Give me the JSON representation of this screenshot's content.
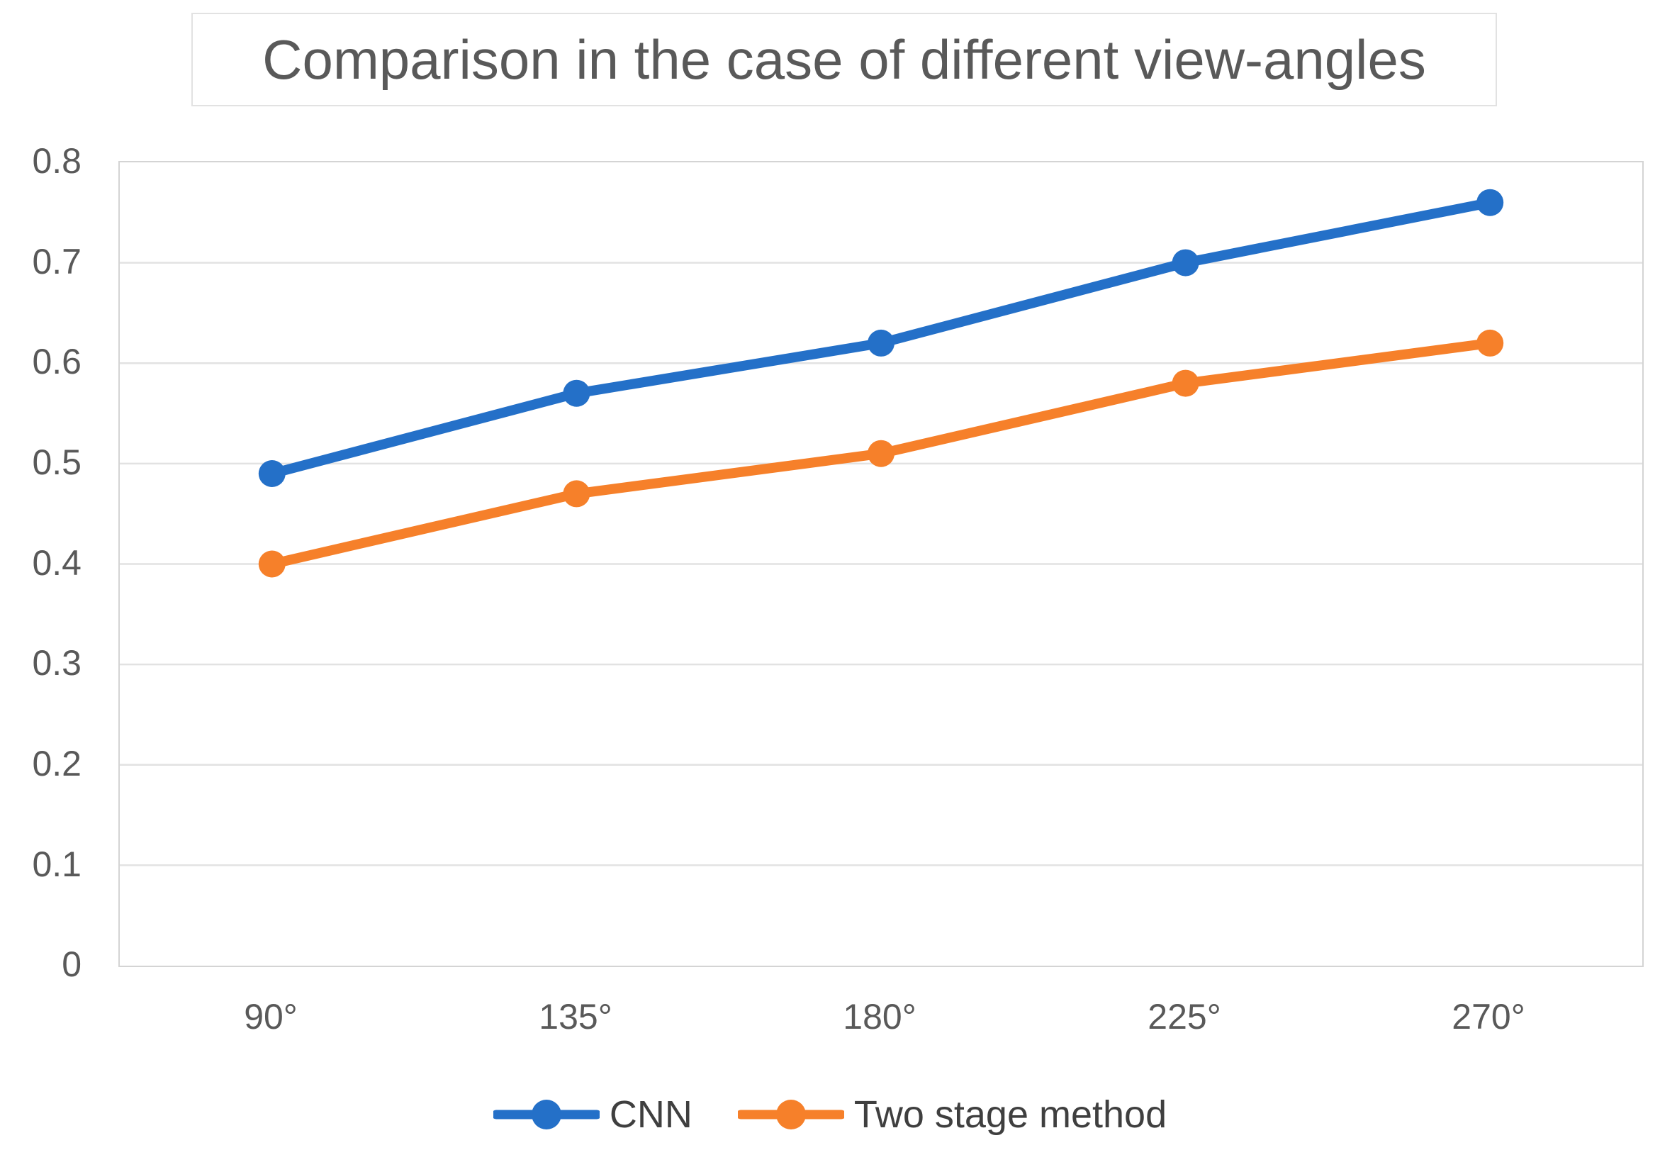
{
  "title": "Comparison in the case of different view-angles",
  "chart_data": {
    "type": "line",
    "categories": [
      "90°",
      "135°",
      "180°",
      "225°",
      "270°"
    ],
    "series": [
      {
        "name": "CNN",
        "color": "#2470C8",
        "values": [
          0.49,
          0.57,
          0.62,
          0.7,
          0.76
        ]
      },
      {
        "name": "Two stage method",
        "color": "#F6802A",
        "values": [
          0.4,
          0.47,
          0.51,
          0.58,
          0.62
        ]
      }
    ],
    "ylim": [
      0,
      0.8
    ],
    "ytick_step": 0.1,
    "ytick_labels": [
      "0.8",
      "0.7",
      "0.6",
      "0.5",
      "0.4",
      "0.3",
      "0.2",
      "0.1",
      "0"
    ],
    "xlabel": "",
    "ylabel": "",
    "grid": "horizontal",
    "gridline_color": "#e2e2e2",
    "axis_border_color": "#d4d4d4",
    "tick_label_color": "#595959",
    "legend_position": "bottom"
  }
}
